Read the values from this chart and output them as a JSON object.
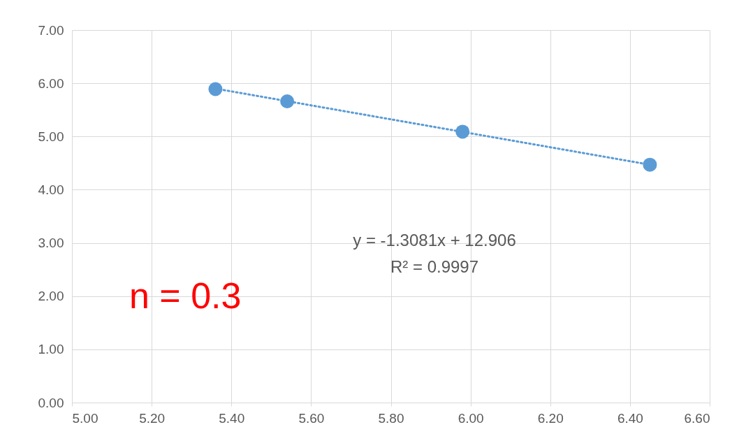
{
  "chart_data": {
    "type": "scatter",
    "grid": true,
    "xlim": [
      5,
      6.6
    ],
    "ylim": [
      0,
      7
    ],
    "xticks": [
      {
        "value": 5,
        "label": "5.00"
      },
      {
        "value": 5.2,
        "label": "5.20"
      },
      {
        "value": 5.4,
        "label": "5.40"
      },
      {
        "value": 5.6,
        "label": "5.60"
      },
      {
        "value": 5.8,
        "label": "5.80"
      },
      {
        "value": 6,
        "label": "6.00"
      },
      {
        "value": 6.2,
        "label": "6.20"
      },
      {
        "value": 6.4,
        "label": "6.40"
      },
      {
        "value": 6.6,
        "label": "6.60"
      }
    ],
    "yticks": [
      {
        "value": 0,
        "label": "0.00"
      },
      {
        "value": 1,
        "label": "1.00"
      },
      {
        "value": 2,
        "label": "2.00"
      },
      {
        "value": 3,
        "label": "3.00"
      },
      {
        "value": 4,
        "label": "4.00"
      },
      {
        "value": 5,
        "label": "5.00"
      },
      {
        "value": 6,
        "label": "6.00"
      },
      {
        "value": 7,
        "label": "7.00"
      }
    ],
    "series": [
      {
        "marker": "circle",
        "color": "#5b9bd5",
        "x": [
          5.36,
          5.54,
          5.98,
          6.45
        ],
        "values": [
          5.89,
          5.66,
          5.09,
          4.47
        ]
      },
      {
        "type": "line",
        "color": "#5b9bd5",
        "line_style": "dotted",
        "x": [
          5.36,
          6.45
        ],
        "values": [
          5.9,
          4.47
        ]
      }
    ],
    "annotations": [
      "y = -1.3081x + 12.906",
      "R² = 0.9997",
      "n = 0.3"
    ]
  }
}
